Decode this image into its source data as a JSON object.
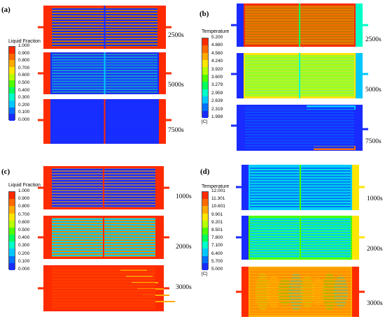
{
  "panels": [
    {
      "label": "(a)",
      "times": [
        "2500s",
        "5000s",
        "7500s"
      ]
    },
    {
      "label": "(b)",
      "times": [
        "2500s",
        "5000s",
        "7500s"
      ]
    },
    {
      "label": "(c)",
      "times": [
        "1000s",
        "2000s",
        "3000s"
      ]
    },
    {
      "label": "(d)",
      "times": [
        "1000s",
        "2000s",
        "3000s"
      ]
    }
  ],
  "legends": {
    "liquid_a": {
      "title": "Liquid Fraction",
      "ticks": [
        "1.000",
        "0.900",
        "0.800",
        "0.700",
        "0.600",
        "0.500",
        "0.400",
        "0.300",
        "0.200",
        "0.100",
        "0.000"
      ]
    },
    "temp_b": {
      "title": "Temperature",
      "ticks": [
        "5.200",
        "4.880",
        "4.560",
        "4.240",
        "3.920",
        "3.600",
        "3.279",
        "2.959",
        "2.639",
        "2.319",
        "1.999"
      ],
      "unit": "[C]"
    },
    "liquid_c": {
      "title": "Liquid Fraction",
      "ticks": [
        "1.000",
        "0.900",
        "0.800",
        "0.700",
        "0.600",
        "0.500",
        "0.400",
        "0.300",
        "0.200",
        "0.100",
        "0.000"
      ]
    },
    "temp_d": {
      "title": "Temperature",
      "ticks": [
        "12.001",
        "11.301",
        "10.601",
        "9.901",
        "9.201",
        "8.501",
        "7.800",
        "7.100",
        "6.400",
        "5.700",
        "5.000"
      ],
      "unit": "[C]"
    }
  },
  "colors": {
    "scale": [
      "#ff2a00",
      "#ff6a00",
      "#ffaa00",
      "#ffe600",
      "#b6ff00",
      "#4cff00",
      "#00ff5a",
      "#00ffc8",
      "#00c8ff",
      "#0070ff",
      "#1a2bff"
    ]
  }
}
